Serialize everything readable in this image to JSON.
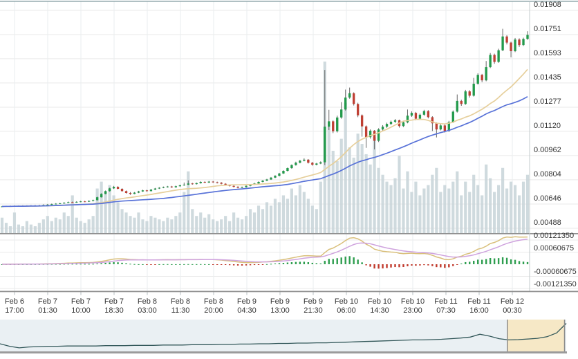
{
  "chart_data": {
    "type": "candlestick",
    "title": "",
    "price_unit": 1e-05,
    "grid": true,
    "legend": "none",
    "y_axis": {
      "side": "right",
      "range": [
        0.00488,
        0.01908
      ],
      "ticks": [
        1908,
        1751,
        1593,
        1435,
        1277,
        1120,
        962,
        804,
        646,
        488
      ],
      "labels": [
        "0.01908",
        "0.01751",
        "0.01593",
        "0.01435",
        "0.01277",
        "0.01120",
        "0.00962",
        "0.00804",
        "0.00646",
        "0.00488"
      ]
    },
    "indicator_axis": {
      "side": "right",
      "range": [
        -0.0012135,
        0.0012135
      ],
      "ticks": [
        121.35,
        60.675,
        -60.675,
        -121.35
      ],
      "labels": [
        "0.00121350",
        "0.00060675",
        "-0.00060675",
        "-0.00121350"
      ]
    },
    "x_axis": {
      "labels": [
        {
          "date": "Feb 6",
          "time": "17:00"
        },
        {
          "date": "Feb 7",
          "time": "01:30"
        },
        {
          "date": "Feb 7",
          "time": "10:00"
        },
        {
          "date": "Feb 7",
          "time": "18:30"
        },
        {
          "date": "Feb 8",
          "time": "03:00"
        },
        {
          "date": "Feb 8",
          "time": "11:30"
        },
        {
          "date": "Feb 8",
          "time": "20:00"
        },
        {
          "date": "Feb 9",
          "time": "04:30"
        },
        {
          "date": "Feb 9",
          "time": "13:00"
        },
        {
          "date": "Feb 9",
          "time": "21:30"
        },
        {
          "date": "Feb 10",
          "time": "06:00"
        },
        {
          "date": "Feb 10",
          "time": "14:30"
        },
        {
          "date": "Feb 10",
          "time": "23:00"
        },
        {
          "date": "Feb 11",
          "time": "07:30"
        },
        {
          "date": "Feb 11",
          "time": "16:00"
        },
        {
          "date": "Feb 12",
          "time": "00:30"
        }
      ]
    },
    "candles": [
      [
        628,
        633,
        626,
        630
      ],
      [
        630,
        635,
        628,
        632
      ],
      [
        632,
        636,
        629,
        631
      ],
      [
        631,
        637,
        629,
        633
      ],
      [
        633,
        637,
        630,
        632
      ],
      [
        632,
        638,
        630,
        634
      ],
      [
        634,
        638,
        631,
        633
      ],
      [
        633,
        639,
        631,
        635
      ],
      [
        635,
        640,
        633,
        636
      ],
      [
        636,
        641,
        634,
        637
      ],
      [
        637,
        644,
        635,
        640
      ],
      [
        640,
        646,
        638,
        642
      ],
      [
        642,
        649,
        640,
        645
      ],
      [
        645,
        652,
        643,
        648
      ],
      [
        648,
        654,
        646,
        650
      ],
      [
        650,
        658,
        648,
        654
      ],
      [
        654,
        662,
        652,
        658
      ],
      [
        658,
        662,
        653,
        656
      ],
      [
        656,
        664,
        654,
        660
      ],
      [
        660,
        667,
        657,
        663
      ],
      [
        663,
        667,
        658,
        661
      ],
      [
        661,
        670,
        659,
        666
      ],
      [
        666,
        675,
        663,
        671
      ],
      [
        671,
        694,
        669,
        690
      ],
      [
        690,
        716,
        688,
        712
      ],
      [
        712,
        734,
        709,
        730
      ],
      [
        730,
        752,
        727,
        748
      ],
      [
        748,
        764,
        744,
        758
      ],
      [
        758,
        762,
        742,
        745
      ],
      [
        745,
        749,
        727,
        730
      ],
      [
        730,
        734,
        714,
        718
      ],
      [
        718,
        724,
        706,
        712
      ],
      [
        712,
        724,
        710,
        720
      ],
      [
        720,
        732,
        717,
        728
      ],
      [
        728,
        739,
        725,
        735
      ],
      [
        735,
        739,
        726,
        730
      ],
      [
        730,
        744,
        728,
        740
      ],
      [
        740,
        751,
        737,
        747
      ],
      [
        747,
        756,
        744,
        752
      ],
      [
        752,
        760,
        749,
        756
      ],
      [
        756,
        764,
        753,
        760
      ],
      [
        760,
        764,
        751,
        755
      ],
      [
        755,
        766,
        752,
        762
      ],
      [
        762,
        772,
        759,
        768
      ],
      [
        768,
        786,
        765,
        772
      ],
      [
        772,
        800,
        769,
        780
      ],
      [
        780,
        784,
        772,
        776
      ],
      [
        776,
        786,
        773,
        782
      ],
      [
        782,
        794,
        779,
        790
      ],
      [
        790,
        794,
        782,
        786
      ],
      [
        786,
        796,
        783,
        792
      ],
      [
        792,
        796,
        784,
        788
      ],
      [
        788,
        792,
        780,
        785
      ],
      [
        785,
        789,
        774,
        778
      ],
      [
        778,
        782,
        766,
        770
      ],
      [
        770,
        774,
        760,
        764
      ],
      [
        764,
        768,
        754,
        758
      ],
      [
        758,
        762,
        748,
        752
      ],
      [
        752,
        760,
        749,
        756
      ],
      [
        756,
        768,
        753,
        764
      ],
      [
        764,
        776,
        761,
        772
      ],
      [
        772,
        784,
        769,
        780
      ],
      [
        780,
        794,
        777,
        790
      ],
      [
        790,
        802,
        787,
        798
      ],
      [
        798,
        810,
        795,
        806
      ],
      [
        806,
        822,
        803,
        818
      ],
      [
        818,
        834,
        815,
        830
      ],
      [
        830,
        849,
        826,
        845
      ],
      [
        845,
        866,
        842,
        862
      ],
      [
        862,
        884,
        858,
        880
      ],
      [
        880,
        904,
        876,
        900
      ],
      [
        900,
        922,
        896,
        915
      ],
      [
        915,
        934,
        911,
        928
      ],
      [
        928,
        944,
        924,
        935
      ],
      [
        935,
        939,
        910,
        915
      ],
      [
        915,
        920,
        896,
        902
      ],
      [
        902,
        914,
        898,
        910
      ],
      [
        910,
        924,
        906,
        918
      ],
      [
        918,
        1520,
        900,
        1150
      ],
      [
        1150,
        1260,
        1128,
        1185
      ],
      [
        1185,
        1192,
        1108,
        1120
      ],
      [
        1120,
        1222,
        1112,
        1210
      ],
      [
        1210,
        1310,
        1202,
        1262
      ],
      [
        1262,
        1392,
        1255,
        1340
      ],
      [
        1340,
        1405,
        1332,
        1368
      ],
      [
        1368,
        1374,
        1288,
        1298
      ],
      [
        1298,
        1306,
        1212,
        1224
      ],
      [
        1224,
        1230,
        1085,
        1152
      ],
      [
        1152,
        1158,
        1012,
        1082
      ],
      [
        1082,
        1132,
        1072,
        1124
      ],
      [
        1124,
        1128,
        1002,
        1058
      ],
      [
        1058,
        1140,
        1050,
        1132
      ],
      [
        1132,
        1160,
        1124,
        1150
      ],
      [
        1150,
        1176,
        1142,
        1168
      ],
      [
        1168,
        1190,
        1160,
        1182
      ],
      [
        1182,
        1200,
        1174,
        1192
      ],
      [
        1192,
        1196,
        1144,
        1154
      ],
      [
        1154,
        1186,
        1148,
        1178
      ],
      [
        1178,
        1262,
        1172,
        1222
      ],
      [
        1222,
        1250,
        1214,
        1240
      ],
      [
        1240,
        1246,
        1192,
        1202
      ],
      [
        1202,
        1236,
        1196,
        1228
      ],
      [
        1228,
        1260,
        1221,
        1252
      ],
      [
        1252,
        1258,
        1204,
        1212
      ],
      [
        1212,
        1218,
        1122,
        1172
      ],
      [
        1172,
        1178,
        1080,
        1132
      ],
      [
        1132,
        1166,
        1126,
        1158
      ],
      [
        1158,
        1164,
        1112,
        1122
      ],
      [
        1122,
        1188,
        1116,
        1180
      ],
      [
        1180,
        1256,
        1174,
        1248
      ],
      [
        1248,
        1360,
        1242,
        1318
      ],
      [
        1318,
        1326,
        1286,
        1298
      ],
      [
        1298,
        1390,
        1292,
        1380
      ],
      [
        1380,
        1388,
        1340,
        1352
      ],
      [
        1352,
        1468,
        1346,
        1430
      ],
      [
        1430,
        1498,
        1424,
        1488
      ],
      [
        1488,
        1494,
        1440,
        1452
      ],
      [
        1452,
        1578,
        1446,
        1538
      ],
      [
        1538,
        1630,
        1532,
        1618
      ],
      [
        1618,
        1626,
        1560,
        1572
      ],
      [
        1572,
        1658,
        1566,
        1648
      ],
      [
        1648,
        1788,
        1642,
        1738
      ],
      [
        1738,
        1746,
        1686,
        1698
      ],
      [
        1698,
        1704,
        1602,
        1642
      ],
      [
        1642,
        1728,
        1636,
        1718
      ],
      [
        1718,
        1726,
        1670,
        1682
      ],
      [
        1682,
        1730,
        1676,
        1722
      ],
      [
        1722,
        1772,
        1716,
        1748
      ]
    ],
    "volumes": [
      9,
      6,
      4,
      12,
      5,
      4,
      7,
      5,
      4,
      6,
      8,
      10,
      7,
      9,
      8,
      12,
      10,
      22,
      9,
      7,
      6,
      8,
      10,
      26,
      30,
      24,
      28,
      22,
      18,
      14,
      12,
      10,
      9,
      12,
      8,
      7,
      10,
      9,
      8,
      7,
      9,
      8,
      10,
      12,
      24,
      36,
      14,
      10,
      12,
      9,
      11,
      8,
      7,
      8,
      10,
      7,
      12,
      9,
      8,
      10,
      14,
      12,
      16,
      14,
      18,
      16,
      20,
      18,
      22,
      20,
      26,
      22,
      28,
      24,
      20,
      16,
      14,
      30,
      100,
      62,
      48,
      42,
      55,
      76,
      50,
      44,
      58,
      52,
      46,
      40,
      56,
      38,
      34,
      30,
      28,
      32,
      45,
      26,
      36,
      24,
      30,
      22,
      26,
      28,
      34,
      38,
      24,
      28,
      26,
      30,
      36,
      22,
      30,
      24,
      34,
      28,
      22,
      40,
      32,
      24,
      28,
      38,
      26,
      30,
      28,
      22,
      30,
      34
    ],
    "overlays": [
      {
        "name": "ma-fast",
        "type": "sma",
        "window": 20
      },
      {
        "name": "ma-slow",
        "type": "sma",
        "window": 40
      }
    ],
    "indicator": {
      "type": "macd",
      "fast": 12,
      "slow": 26,
      "signal": 9
    },
    "navigator": {
      "values": [
        24,
        16,
        11,
        14,
        15,
        16,
        16,
        17,
        17,
        17,
        17,
        18,
        18,
        18,
        19,
        19,
        19,
        20,
        20,
        20,
        21,
        21,
        21,
        22,
        22,
        23,
        23,
        24,
        24,
        25,
        25,
        26,
        26,
        27,
        27,
        28,
        29,
        30,
        31,
        32,
        33,
        34,
        35,
        36,
        36,
        37,
        38,
        40,
        42,
        45,
        54,
        48,
        40,
        36,
        37,
        39,
        41,
        46,
        58,
        88
      ],
      "selection": [
        0.896,
        0.997
      ]
    }
  },
  "colors": {
    "up": "#239a4c",
    "down": "#bf4034",
    "wick": "#666666",
    "volume": "#c7d4d8",
    "ma_fast": "#e6cf9b",
    "ma_slow": "#5872d8",
    "macd_line": "#d9bf7a",
    "macd_signal": "#cfa3de",
    "hist_up": "#2e9e4f",
    "hist_down": "#c0392b",
    "grid": "#e9e9e9",
    "grid_v": "#eaeeef",
    "border_top": "#93a9ad",
    "separator": "#8f8f8f",
    "axis_line": "#c3cbcd",
    "tick": "#b6bec0",
    "nav_bg": "#eaf0f3",
    "nav_line": "#33585a",
    "nav_selection": "#f6e8c6",
    "nav_handle": "#8c8c8c",
    "nav_border": "#9b9b9b",
    "label_text": "#333333"
  }
}
